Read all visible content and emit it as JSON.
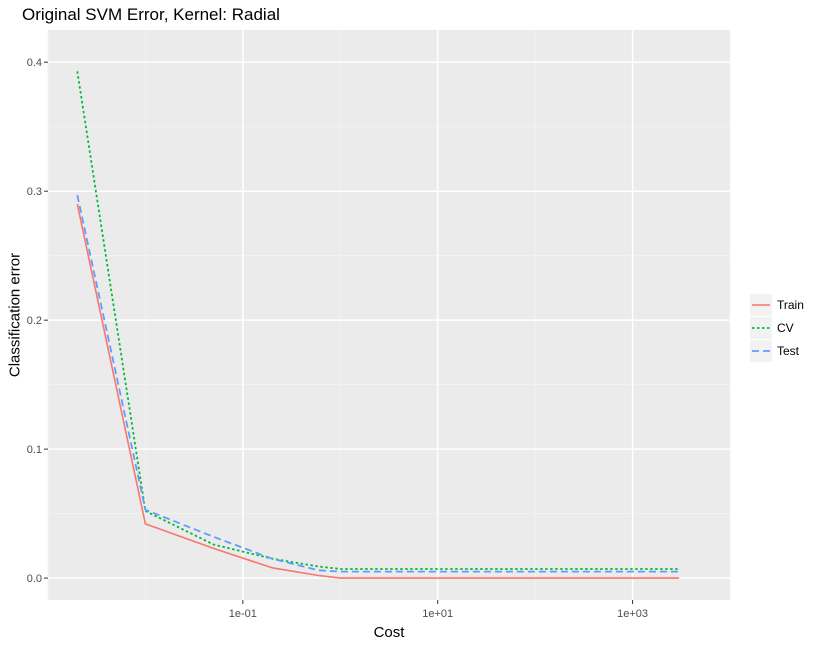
{
  "chart_data": {
    "type": "line",
    "title": "Original SVM Error, Kernel: Radial",
    "xlabel": "Cost",
    "ylabel": "Classification error",
    "xscale": "log10",
    "xlim": [
      0.001,
      10000
    ],
    "ylim": [
      -0.017,
      0.425
    ],
    "x_ticks": [
      0.1,
      10,
      1000
    ],
    "x_tick_labels": [
      "1e-01",
      "1e+01",
      "1e+03"
    ],
    "y_ticks": [
      0.0,
      0.1,
      0.2,
      0.3,
      0.4
    ],
    "y_tick_labels": [
      "0.0",
      "0.1",
      "0.2",
      "0.3",
      "0.4"
    ],
    "x": [
      0.002,
      0.01,
      0.05,
      0.2,
      0.6,
      1,
      3000
    ],
    "series": [
      {
        "name": "Train",
        "color": "#F8766D",
        "dash": "solid",
        "values": [
          0.29,
          0.042,
          0.023,
          0.008,
          0.002,
          0.0,
          0.0
        ]
      },
      {
        "name": "CV",
        "color": "#00BA38",
        "dash": "dotted",
        "values": [
          0.393,
          0.052,
          0.026,
          0.015,
          0.009,
          0.007,
          0.007
        ]
      },
      {
        "name": "Test",
        "color": "#619CFF",
        "dash": "dashed",
        "values": [
          0.297,
          0.053,
          0.032,
          0.015,
          0.006,
          0.005,
          0.005
        ]
      }
    ],
    "legend_position": "right",
    "grid": true
  }
}
